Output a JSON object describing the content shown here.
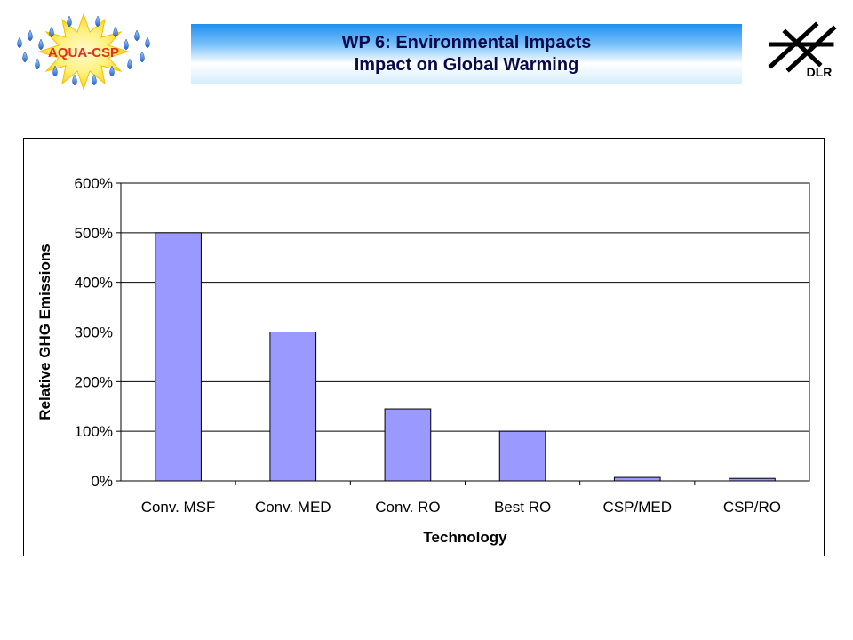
{
  "header": {
    "title_line1": "WP 6: Environmental Impacts",
    "title_line2": "Impact on Global Warming",
    "left_logo_text": "AQUA-CSP",
    "right_logo_text": "DLR"
  },
  "chart_data": {
    "type": "bar",
    "categories": [
      "Conv. MSF",
      "Conv. MED",
      "Conv. RO",
      "Best RO",
      "CSP/MED",
      "CSP/RO"
    ],
    "values": [
      500,
      300,
      145,
      100,
      7,
      5
    ],
    "value_unit": "%",
    "xlabel": "Technology",
    "ylabel": "Relative GHG Emissions",
    "ylim": [
      0,
      600
    ],
    "yticks": [
      "0%",
      "100%",
      "200%",
      "300%",
      "400%",
      "500%",
      "600%"
    ],
    "grid": "horizontal",
    "bar_color": "#9999ff",
    "legend": "none"
  }
}
